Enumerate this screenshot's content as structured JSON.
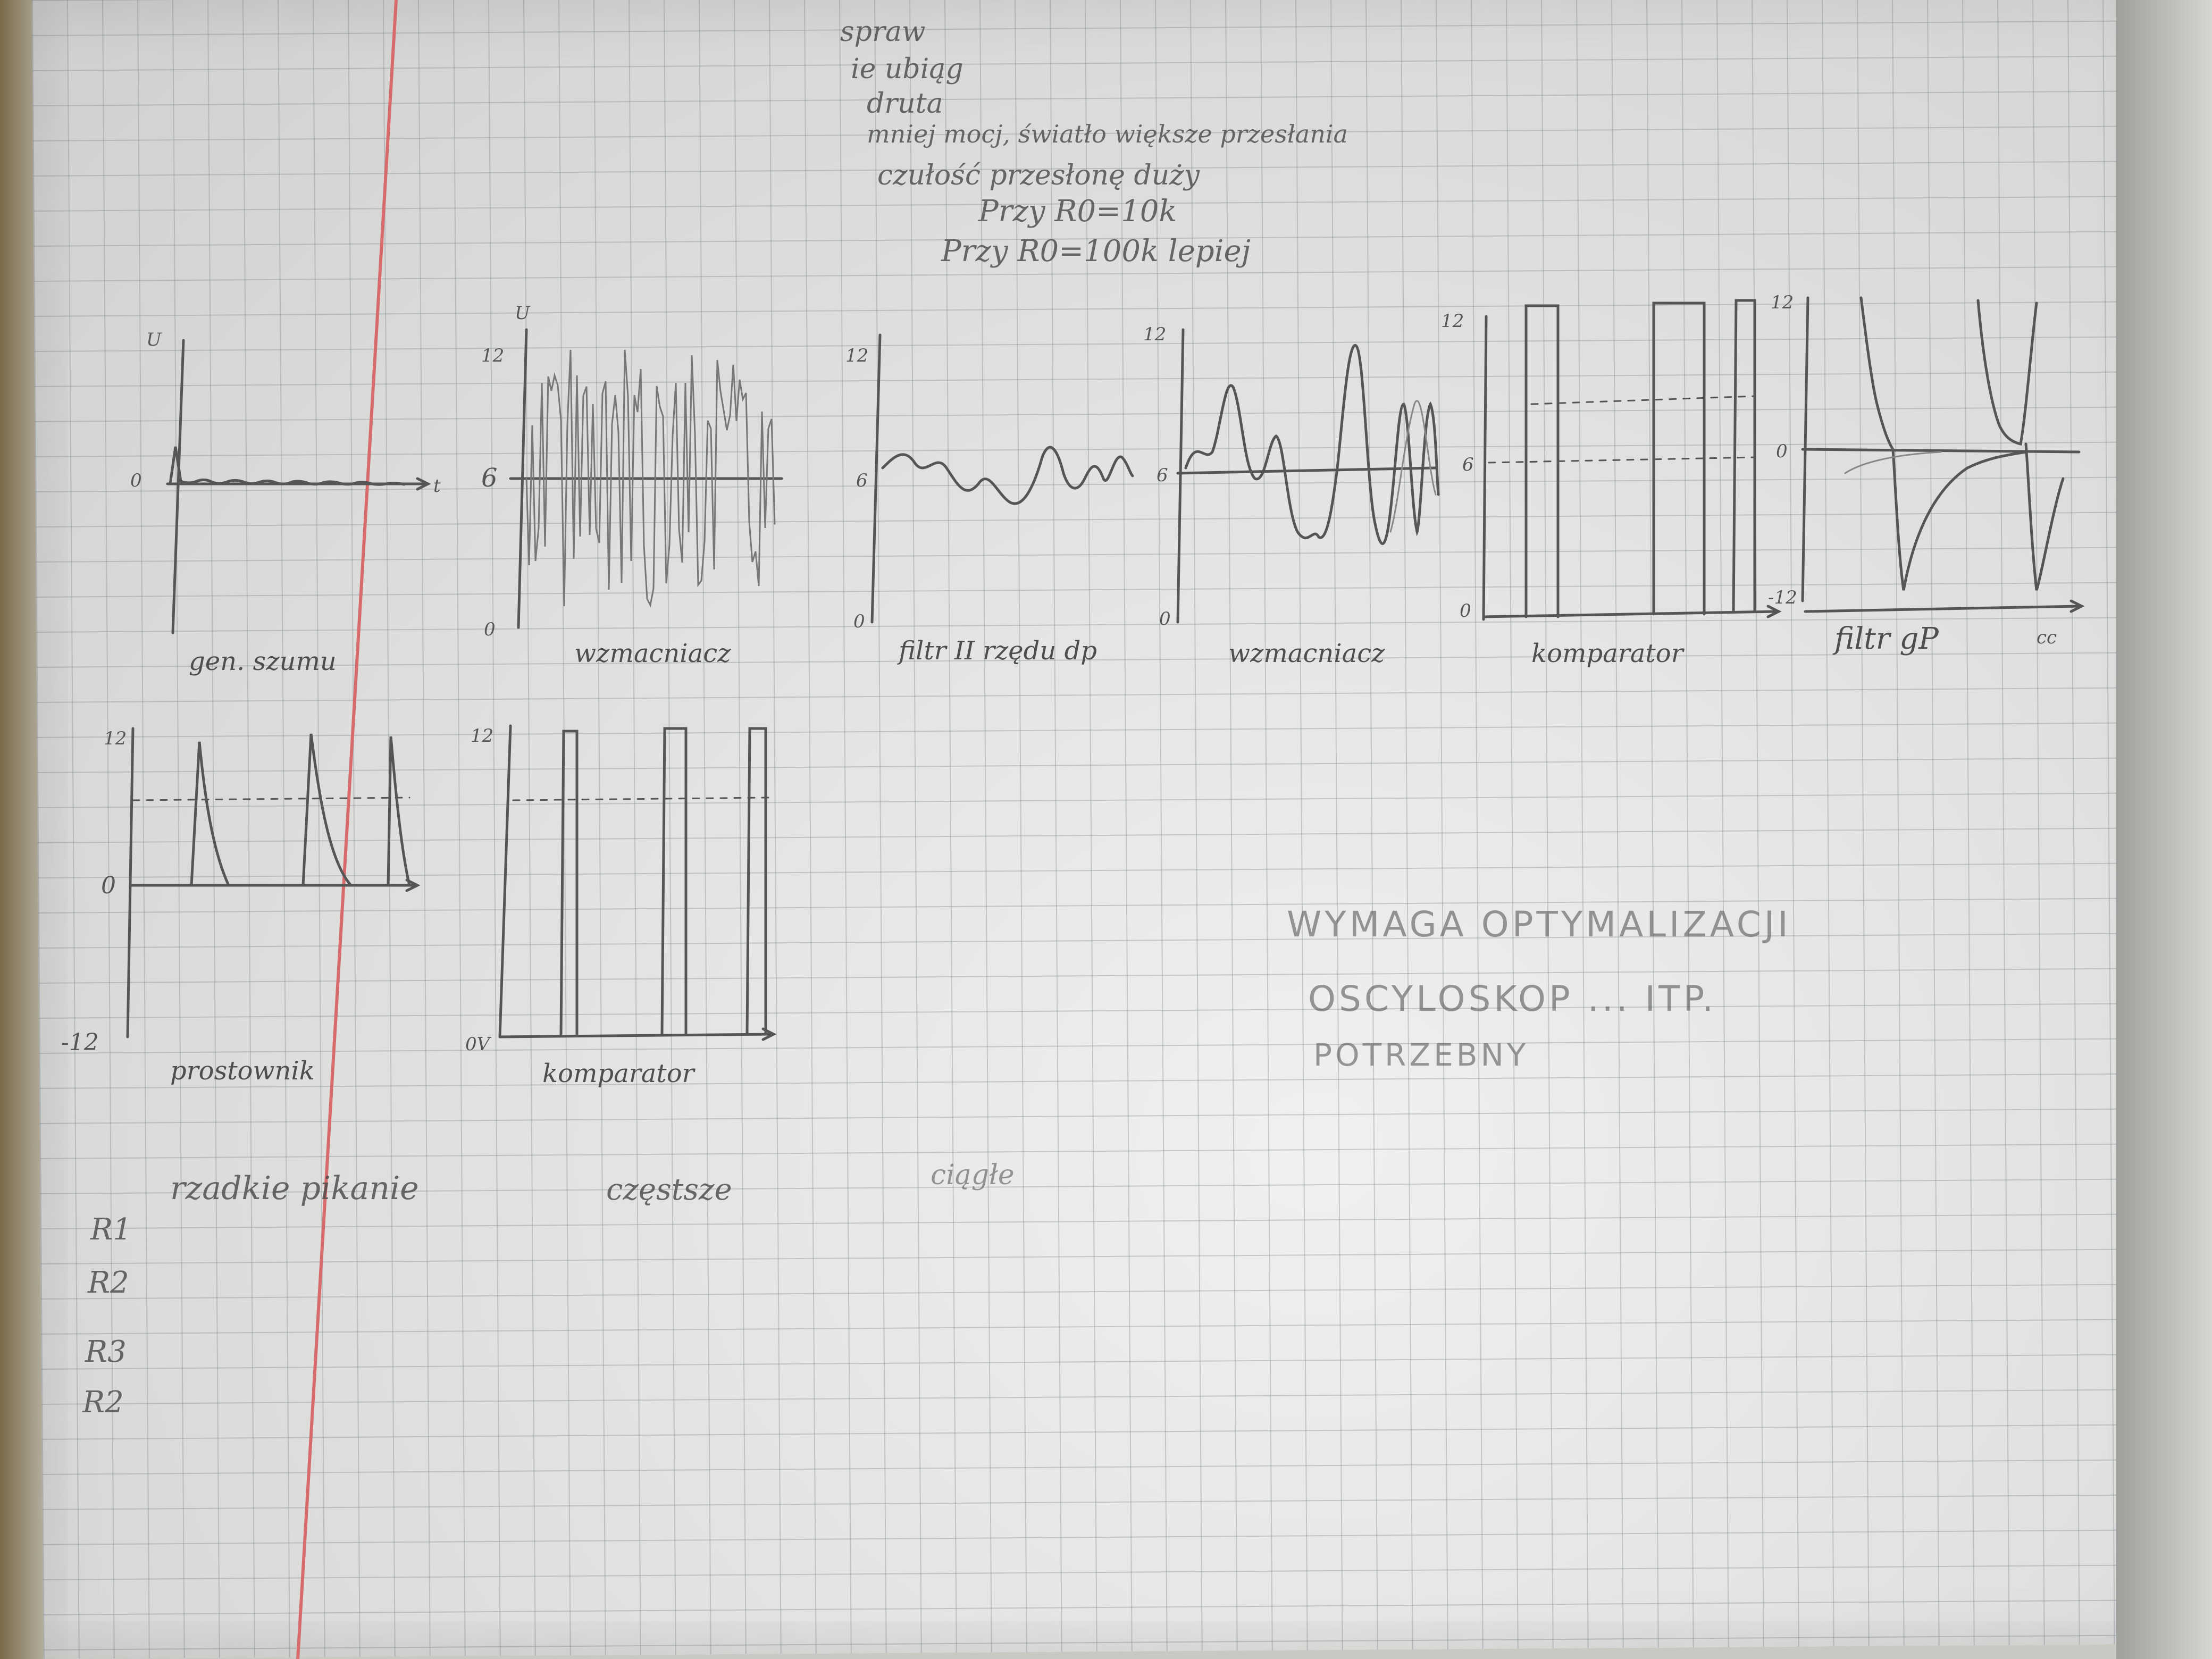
{
  "notes": {
    "line1": "spraw",
    "line2": "ie ubiąg",
    "line3": "druta",
    "line4": "mniej mocj, światło większe przesłania",
    "line5": "czułość przesłonę duży",
    "line6": "Przy R0=10k",
    "line7": "Przy R0=100k lepiej"
  },
  "row1": [
    {
      "label": "gen. szumu",
      "ymax": "",
      "ymid": "0",
      "ymin": "",
      "yaxis": "U",
      "xaxis": "t"
    },
    {
      "label": "wzmacniacz",
      "ymax": "12",
      "ymid": "6",
      "ymin": "0",
      "yaxis": "U",
      "xaxis": ""
    },
    {
      "label": "filtr II rzędu dp",
      "ymax": "12",
      "ymid": "6",
      "ymin": "0",
      "yaxis": "",
      "xaxis": ""
    },
    {
      "label": "wzmacniacz",
      "ymax": "12",
      "ymid": "6",
      "ymin": "0",
      "yaxis": "",
      "xaxis": ""
    },
    {
      "label": "komparator",
      "ymax": "12",
      "ymid": "6",
      "ymin": "0",
      "yaxis": "",
      "xaxis": ""
    },
    {
      "label": "filtr gP",
      "ymax": "12",
      "ymid": "0",
      "ymin": "-12",
      "yaxis": "",
      "xaxis": "cc"
    }
  ],
  "row2": [
    {
      "label": "prostownik",
      "ymax": "12",
      "ymid": "0",
      "ymin": "-12"
    },
    {
      "label": "komparator",
      "ymax": "12",
      "ymid": "",
      "ymin": "0V"
    }
  ],
  "bottom": {
    "col1": "rzadkie pikanie",
    "col2": "częstsze",
    "col3": "ciągłe",
    "r1": "R1",
    "r2": "R2",
    "r3": "R3",
    "r4": "R2"
  },
  "remark": {
    "line1": "WYMAGA OPTYMALIZACJI",
    "line2": "OSCYLOSKOP ... ITP.",
    "line3": "POTRZEBNY"
  }
}
